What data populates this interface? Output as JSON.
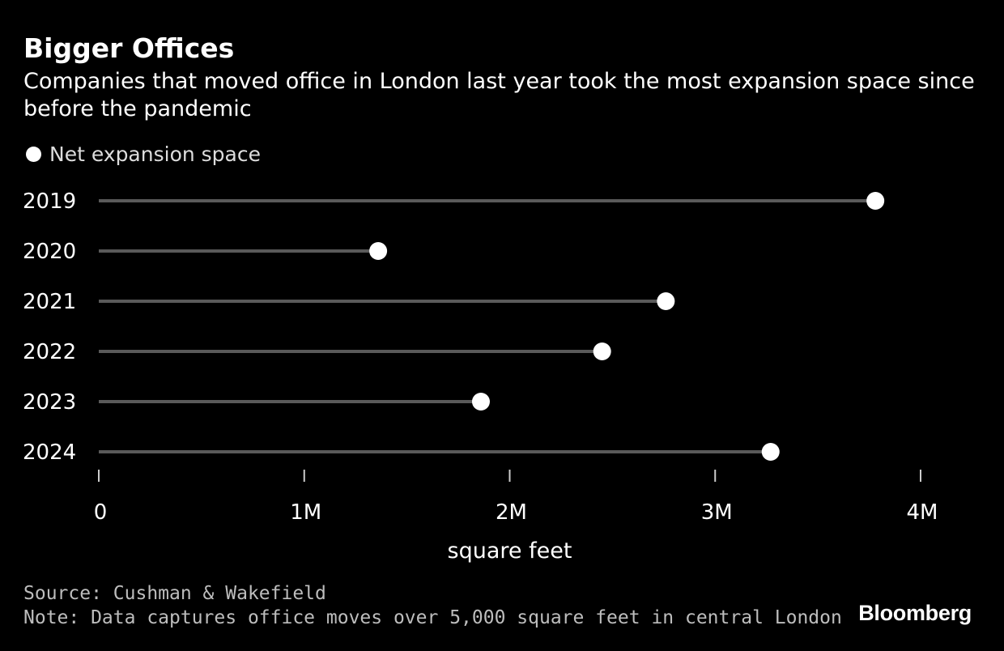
{
  "title": "Bigger Offices",
  "subtitle": "Companies that moved office in London last year took the most expansion space since before the pandemic",
  "legend": {
    "label": "Net expansion space"
  },
  "source": "Source: Cushman & Wakefield",
  "note": "Note: Data captures office moves over 5,000 square feet in central London",
  "brand": "Bloomberg",
  "colors": {
    "background": "#000000",
    "stem": "#5a5a5a",
    "dot": "#ffffff",
    "text": "#ffffff",
    "muted": "#bdbdbd"
  },
  "chart_data": {
    "type": "lollipop",
    "title": "Bigger Offices",
    "categories": [
      "2019",
      "2020",
      "2021",
      "2022",
      "2023",
      "2024"
    ],
    "series": [
      {
        "name": "Net expansion space",
        "values": [
          3780000,
          1360000,
          2760000,
          2450000,
          1860000,
          3270000
        ]
      }
    ],
    "xlabel": "square feet",
    "ylabel": "",
    "xlim": [
      0,
      4000000
    ],
    "x_ticks": [
      0,
      1000000,
      2000000,
      3000000,
      4000000
    ],
    "x_tick_labels": [
      "0",
      "1M",
      "2M",
      "3M",
      "4M"
    ],
    "grid": false,
    "legend_position": "top-left"
  }
}
